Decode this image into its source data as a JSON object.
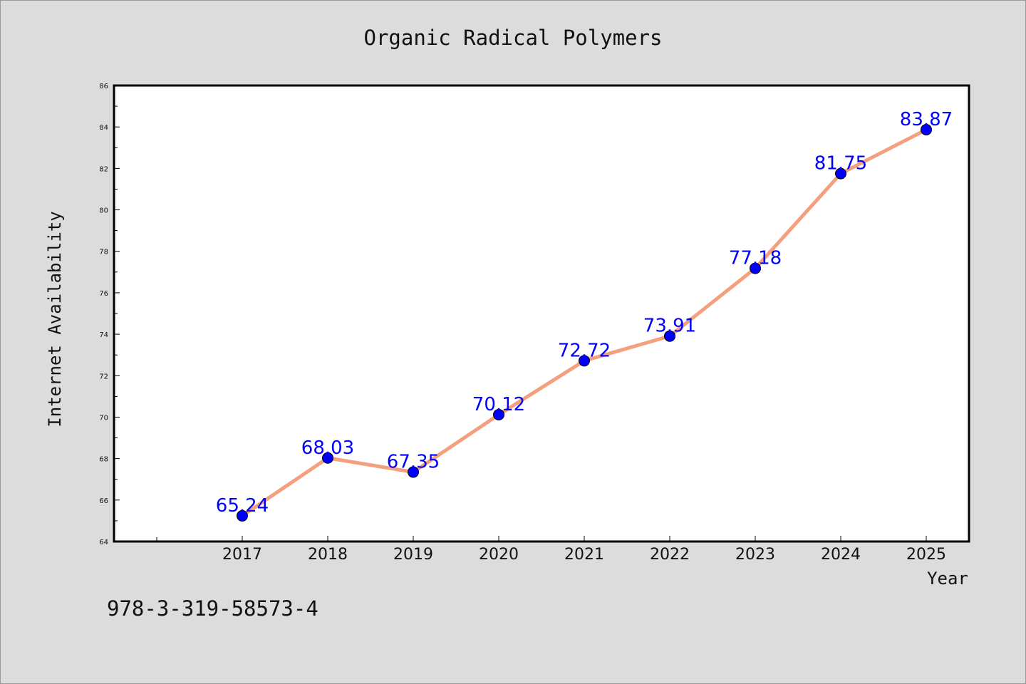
{
  "chart_data": {
    "type": "line",
    "title": "Organic Radical Polymers",
    "xlabel": "Year",
    "ylabel": "Internet Availability",
    "categories": [
      "2017",
      "2018",
      "2019",
      "2020",
      "2021",
      "2022",
      "2023",
      "2024",
      "2025"
    ],
    "series": [
      {
        "values": [
          65.24,
          68.03,
          67.35,
          70.12,
          72.72,
          73.91,
          77.18,
          81.75,
          83.87
        ],
        "data_labels": [
          "65.24",
          "68.03",
          "67.35",
          "70.12",
          "72.72",
          "73.91",
          "77.18",
          "81.75",
          "83.87"
        ],
        "line_color": "#f4a07f",
        "marker_color": "#0000ff"
      }
    ],
    "ylim": [
      64,
      86
    ],
    "yticks": [
      "64",
      "66",
      "68",
      "70",
      "72",
      "74",
      "76",
      "78",
      "80",
      "82",
      "84",
      "86"
    ],
    "grid": false,
    "legend": "none"
  },
  "footnote": "978-3-319-58573-4",
  "colors": {
    "background": "#dcdcdc",
    "plot_background": "#ffffff",
    "axis": "#000000"
  }
}
